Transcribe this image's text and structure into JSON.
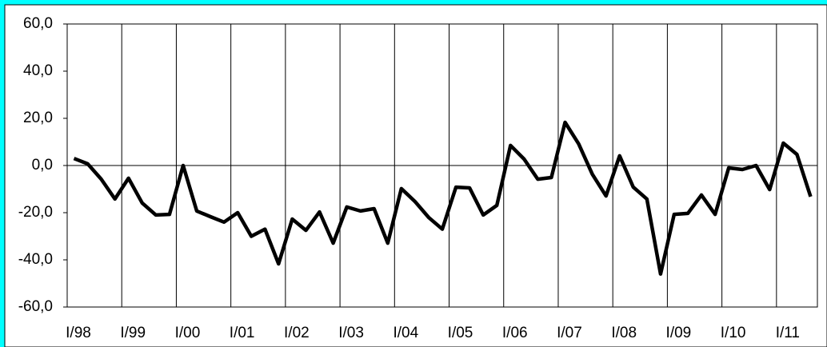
{
  "chart_data": {
    "type": "line",
    "categories": [
      "I/98",
      null,
      null,
      null,
      "I/99",
      null,
      null,
      null,
      "I/00",
      null,
      null,
      null,
      "I/01",
      null,
      null,
      null,
      "I/02",
      null,
      null,
      null,
      "I/03",
      null,
      null,
      null,
      "I/04",
      null,
      null,
      null,
      "I/05",
      null,
      null,
      null,
      "I/06",
      null,
      null,
      null,
      "I/07",
      null,
      null,
      null,
      "I/08",
      null,
      null,
      null,
      "I/09",
      null,
      null,
      null,
      "I/10",
      null,
      null,
      null,
      "I/11",
      null,
      null
    ],
    "values": [
      3.0,
      0.7,
      -5.8,
      -14.2,
      -5.4,
      -15.9,
      -21.0,
      -20.7,
      0.0,
      -19.3,
      -21.7,
      -24.0,
      -20.0,
      -30.0,
      -27.0,
      -41.7,
      -22.7,
      -27.5,
      -19.7,
      -32.9,
      -17.6,
      -19.3,
      -18.3,
      -32.9,
      -9.8,
      -15.3,
      -22.0,
      -27.0,
      -9.2,
      -9.5,
      -21.0,
      -16.9,
      8.5,
      2.7,
      -5.8,
      -5.1,
      18.3,
      9.2,
      -3.7,
      -12.9,
      4.1,
      -9.2,
      -14.2,
      -46.0,
      -20.7,
      -20.3,
      -12.5,
      -20.7,
      -1.0,
      -1.7,
      0.0,
      -10.2,
      9.5,
      4.7,
      -13.2
    ],
    "color": "#000000",
    "ylim": [
      -60,
      60
    ],
    "yticks": [
      {
        "value": -60,
        "label": "-60,0"
      },
      {
        "value": -40,
        "label": "-40,0"
      },
      {
        "value": -20,
        "label": "-20,0"
      },
      {
        "value": 0,
        "label": "0,0"
      },
      {
        "value": 20,
        "label": "20,0"
      },
      {
        "value": 40,
        "label": "40,0"
      },
      {
        "value": 60,
        "label": "60,0"
      }
    ]
  }
}
